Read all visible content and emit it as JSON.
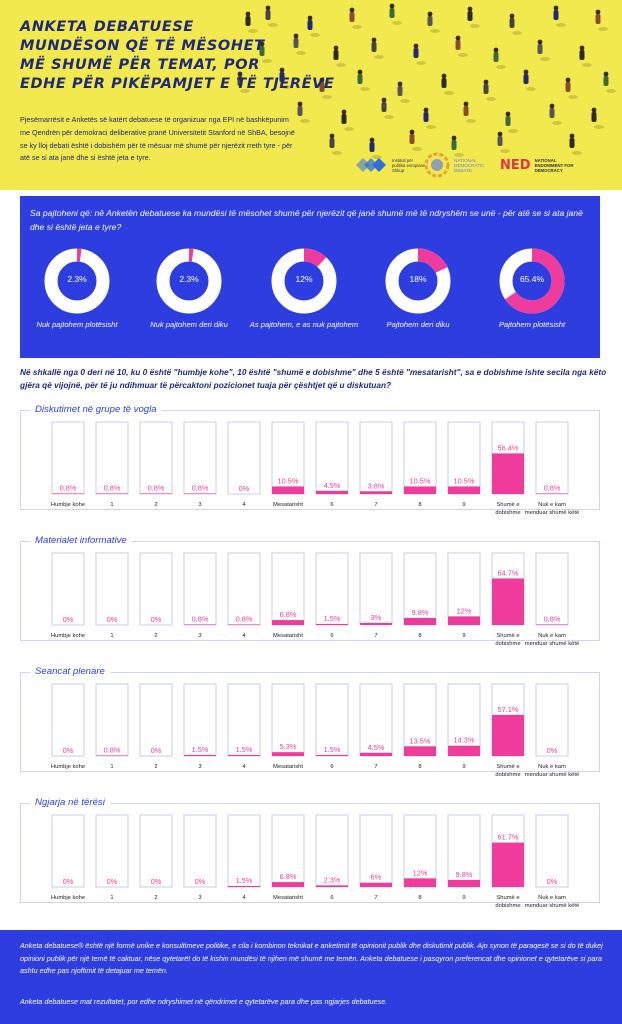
{
  "header": {
    "title_lines": [
      "ANKETA DEBATUESE",
      "MUNDËSON QË TË MËSOHET",
      "MË SHUMË PËR TEMAT, POR",
      "EDHE PËR PIKËPAMJET E TË TJERËVE"
    ],
    "intro": "Pjesëmarrësit e Anketës së katërt debatuese të organizuar nga EPI në bashkëpunim me Qendrën për demokraci deliberative pranë Universitetit Stanford në ShBA, besojnë se ky lloj debati është i dobishëm për të mësuar më shumë për njerëzit rreth tyre - për atë se si ata janë dhe si është jeta e tyre.",
    "logos": [
      {
        "name": "epi",
        "text": "Instituti për politika evropiane Shkup",
        "color": "#2e6fe0"
      },
      {
        "name": "ndd",
        "text": "NATIONAL DEMOCRATIC DEBATE",
        "color": "#6b7de0"
      },
      {
        "name": "ned",
        "text": "NATIONAL ENDOWMENT FOR DEMOCRACY",
        "mark": "NED",
        "color": "#e0334e"
      }
    ]
  },
  "colors": {
    "yellow": "#f2e94e",
    "blue": "#2e3de0",
    "navy": "#1e2a78",
    "pink": "#ee3b9c",
    "frame": "#d0d3f2",
    "bar_outline": "#c8cbef"
  },
  "agreement": {
    "question": "Sa pajtoheni që: në Anketën debatuese ka mundësi të mësohet shumë për njerëzit që janë shumë më të ndryshëm se unë - për atë se si ata janë dhe si është jeta e tyre?",
    "items": [
      {
        "value": 2.3,
        "value_label": "2.3%",
        "label": "Nuk pajtohem plotësisht"
      },
      {
        "value": 2.3,
        "value_label": "2.3%",
        "label": "Nuk pajtohem deri diku"
      },
      {
        "value": 12,
        "value_label": "12%",
        "label": "As pajtohem, e as nuk pajtohem"
      },
      {
        "value": 18,
        "value_label": "18%",
        "label": "Pajtohem deri diku"
      },
      {
        "value": 65.4,
        "value_label": "65.4%",
        "label": "Pajtohem plotësisht"
      }
    ]
  },
  "scale_question": "Në shkallë nga 0 deri në 10, ku 0 është \"humbje kohe\", 10 është \"shumë e dobishme\" dhe 5 është \"mesatarisht\", sa e dobishme ishte secila nga këto gjëra që vijojnë, për të ju ndihmuar të përcaktoni pozicionet tuaja për çështjet që u diskutuan?",
  "chart_data": [
    {
      "type": "bar",
      "title": "Diskutimet në grupe të vogla",
      "categories": [
        "Humbje kohe",
        "1",
        "2",
        "3",
        "4",
        "Mesatarisht",
        "6",
        "7",
        "8",
        "9",
        "Shumë e dobishme",
        "Nuk e kam menduar shumë këtë"
      ],
      "values": [
        0.8,
        0.8,
        0.8,
        0.8,
        0,
        10.5,
        4.5,
        3.8,
        10.5,
        10.5,
        56.4,
        0.8
      ],
      "value_labels": [
        "0.8%",
        "0.8%",
        "0.8%",
        "0.8%",
        "0%",
        "10.5%",
        "4.5%",
        "3.8%",
        "10.5%",
        "10.5%",
        "56.4%",
        "0.8%"
      ],
      "ylim": [
        0,
        100
      ]
    },
    {
      "type": "bar",
      "title": "Materialet informative",
      "categories": [
        "Humbje kohe",
        "1",
        "2",
        "3",
        "4",
        "Mesatarisht",
        "6",
        "7",
        "8",
        "9",
        "Shumë e dobishme",
        "Nuk e kam menduar shumë këtë"
      ],
      "values": [
        0,
        0,
        0,
        0.8,
        0.8,
        6.8,
        1.5,
        3,
        9.8,
        12,
        64.7,
        0.8
      ],
      "value_labels": [
        "0%",
        "0%",
        "0%",
        "0.8%",
        "0.8%",
        "6.8%",
        "1.5%",
        "3%",
        "9.8%",
        "12%",
        "64.7%",
        "0.8%"
      ],
      "ylim": [
        0,
        100
      ]
    },
    {
      "type": "bar",
      "title": "Seancat plenare",
      "categories": [
        "Humbje kohe",
        "1",
        "2",
        "3",
        "4",
        "Mesatarisht",
        "6",
        "7",
        "8",
        "9",
        "Shumë e dobishme",
        "Nuk e kam menduar shumë këtë"
      ],
      "values": [
        0,
        0.8,
        0,
        1.5,
        1.5,
        5.3,
        1.5,
        4.5,
        13.5,
        14.3,
        57.1,
        0
      ],
      "value_labels": [
        "0%",
        "0.8%",
        "0%",
        "1.5%",
        "1.5%",
        "5.3%",
        "1.5%",
        "4.5%",
        "13.5%",
        "14.3%",
        "57.1%",
        "0%"
      ],
      "ylim": [
        0,
        100
      ]
    },
    {
      "type": "bar",
      "title": "Ngjarja në tërësi",
      "categories": [
        "Humbje kohe",
        "1",
        "2",
        "3",
        "4",
        "Mesatarisht",
        "6",
        "7",
        "8",
        "9",
        "Shumë e dobishme",
        "Nuk e kam menduar shumë këtë"
      ],
      "values": [
        0,
        0,
        0,
        0,
        1.5,
        6.8,
        2.3,
        6,
        12,
        9.8,
        61.7,
        0
      ],
      "value_labels": [
        "0%",
        "0%",
        "0%",
        "0%",
        "1.5%",
        "6.8%",
        "2.3%",
        "6%",
        "12%",
        "9.8%",
        "61.7%",
        "0%"
      ],
      "ylim": [
        0,
        100
      ]
    }
  ],
  "footer": {
    "p1": "Anketa debatuese® është një formë unike e konsultimeve politike, e cila i kombinon teknikat e anketimit të opinionit publik dhe diskutimit publik. Ajo synon të paraqesë se si do të dukej opinioni publik për një temë të caktuar, nëse qytetarët do të kishin mundësi të njihen më shumë me temën. Anketa debatuese i pasqyron preferencat dhe opinionet e qytetarëve si para ashtu edhe pas njoftimit të detajuar me temën.",
    "p2": "Anketa debatuese mat rezultatet, por edhe ndryshimet në qëndrimet e qytetarëve para dhe pas ngjarjes debatuese."
  }
}
